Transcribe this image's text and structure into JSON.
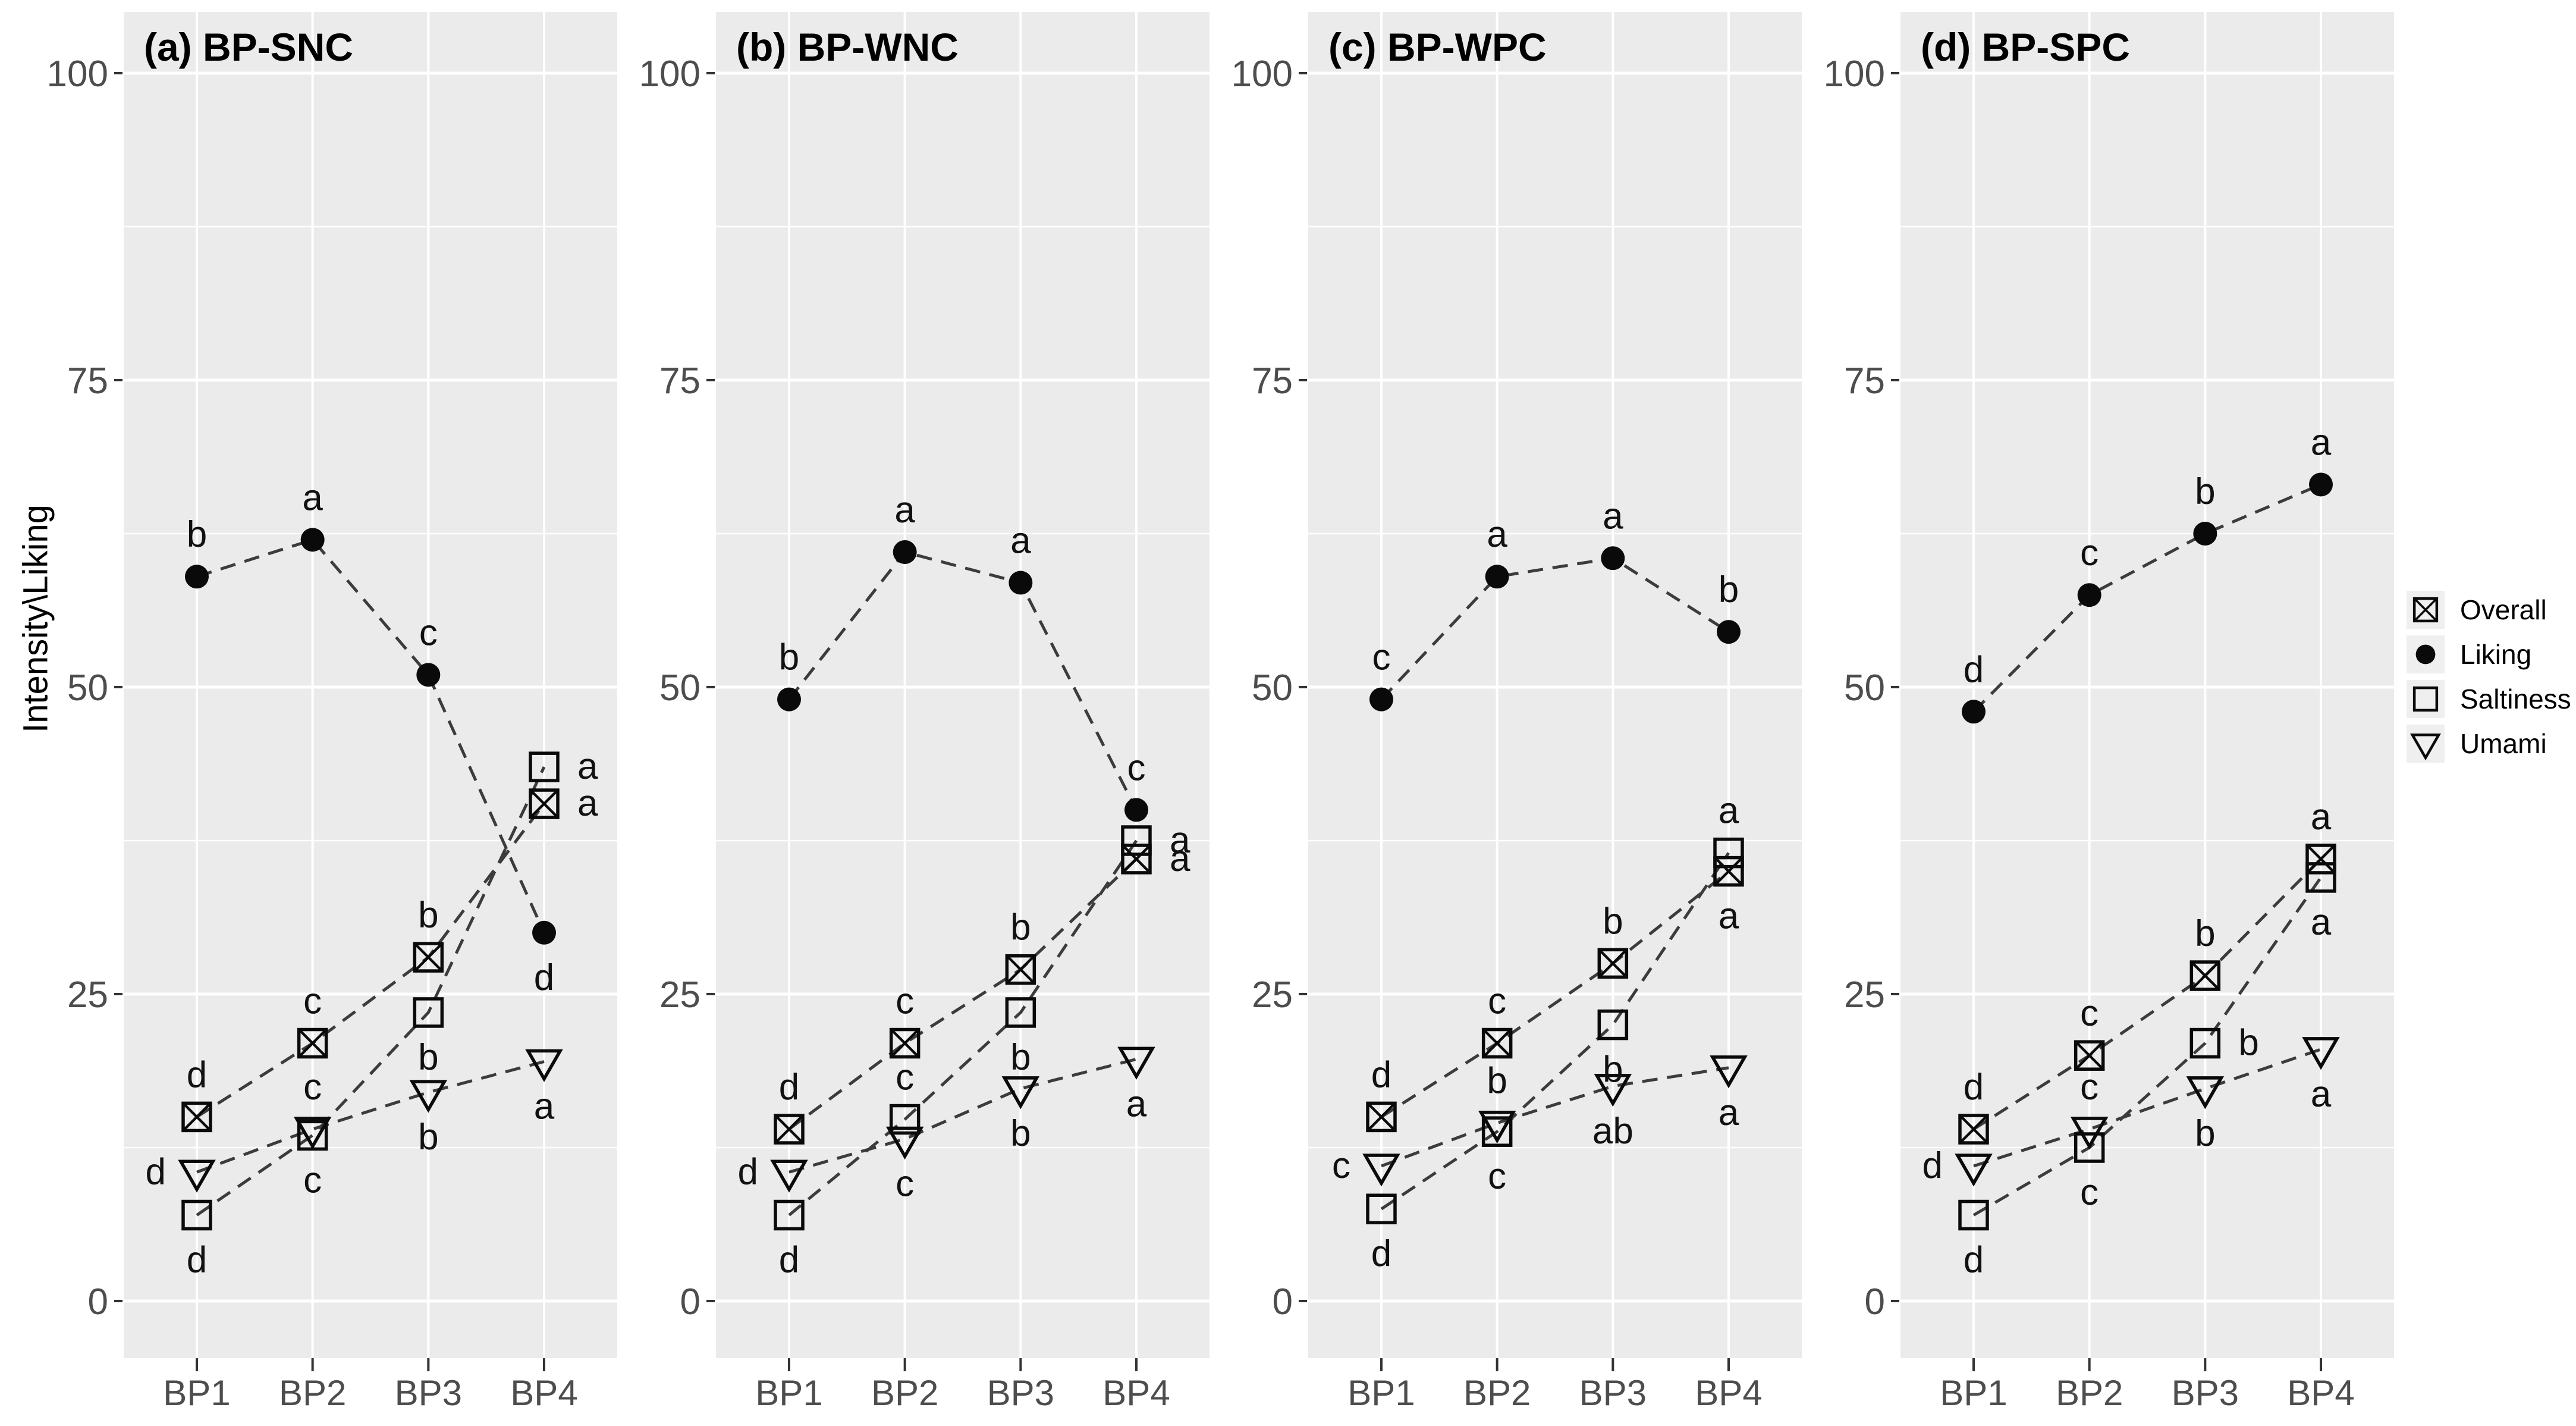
{
  "figure": {
    "ylabel": "Intensity\\Liking",
    "background": "#FFFFFF"
  },
  "colors": {
    "panel_bg": "#EBEBEB",
    "grid_major": "#FFFFFF",
    "grid_minor": "#FFFFFF",
    "marker": "#0A0A0A",
    "dash_line": "#3C3C3C",
    "axis_text": "#4D4D4D",
    "tick_mark": "#333333",
    "title_text": "#000000",
    "sig_label_text": "#111111",
    "legend_key_bg": "#EFEFEF"
  },
  "legend": {
    "position": "right",
    "entries": [
      {
        "label": "Overall",
        "marker": "crossed-square"
      },
      {
        "label": "Liking",
        "marker": "filled-circle"
      },
      {
        "label": "Saltiness",
        "marker": "open-square"
      },
      {
        "label": "Umami",
        "marker": "open-triangle-down"
      }
    ]
  },
  "chart_data": [
    {
      "type": "line",
      "title": "(a) BP-SNC",
      "categories": [
        "BP1",
        "BP2",
        "BP3",
        "BP4"
      ],
      "xlabel": "",
      "ylabel": "Intensity\\Liking",
      "ylim": [
        0,
        100
      ],
      "yticks": [
        0,
        25,
        50,
        75,
        100
      ],
      "grid": "major+minor",
      "line_style": "dashed",
      "series": [
        {
          "name": "Overall",
          "marker": "crossed-square",
          "values": [
            15,
            21,
            28,
            40.5
          ],
          "sig_labels": [
            "d",
            "c",
            "b",
            "a"
          ],
          "label_pos": [
            "above",
            "above",
            "above",
            "right"
          ]
        },
        {
          "name": "Liking",
          "marker": "filled-circle",
          "values": [
            59,
            62,
            51,
            30
          ],
          "sig_labels": [
            "b",
            "a",
            "c",
            "d"
          ],
          "label_pos": [
            "above",
            "above",
            "above",
            "below"
          ]
        },
        {
          "name": "Saltiness",
          "marker": "open-square",
          "values": [
            7,
            13.5,
            23.5,
            43.5
          ],
          "sig_labels": [
            "d",
            "c",
            "b",
            "a"
          ],
          "label_pos": [
            "below",
            "below",
            "below",
            "right"
          ]
        },
        {
          "name": "Umami",
          "marker": "open-triangle-down",
          "values": [
            10.5,
            14,
            17,
            19.5
          ],
          "sig_labels": [
            "d",
            "c",
            "b",
            "a"
          ],
          "label_pos": [
            "left",
            "above",
            "below",
            "below"
          ]
        }
      ]
    },
    {
      "type": "line",
      "title": "(b) BP-WNC",
      "categories": [
        "BP1",
        "BP2",
        "BP3",
        "BP4"
      ],
      "xlabel": "",
      "ylabel": "Intensity\\Liking",
      "ylim": [
        0,
        100
      ],
      "yticks": [
        0,
        25,
        50,
        75,
        100
      ],
      "grid": "major+minor",
      "line_style": "dashed",
      "series": [
        {
          "name": "Overall",
          "marker": "crossed-square",
          "values": [
            14,
            21,
            27,
            36
          ],
          "sig_labels": [
            "d",
            "c",
            "b",
            "a"
          ],
          "label_pos": [
            "above",
            "above",
            "above",
            "right"
          ]
        },
        {
          "name": "Liking",
          "marker": "filled-circle",
          "values": [
            49,
            61,
            58.5,
            40
          ],
          "sig_labels": [
            "b",
            "a",
            "a",
            "c"
          ],
          "label_pos": [
            "above",
            "above",
            "above",
            "above"
          ]
        },
        {
          "name": "Saltiness",
          "marker": "open-square",
          "values": [
            7,
            14.8,
            23.5,
            37.5
          ],
          "sig_labels": [
            "d",
            "c",
            "b",
            "a"
          ],
          "label_pos": [
            "below",
            "above",
            "below",
            "right"
          ]
        },
        {
          "name": "Umami",
          "marker": "open-triangle-down",
          "values": [
            10.5,
            13.2,
            17.3,
            19.7
          ],
          "sig_labels": [
            "d",
            "c",
            "b",
            "a"
          ],
          "label_pos": [
            "left",
            "below",
            "below",
            "below"
          ]
        }
      ]
    },
    {
      "type": "line",
      "title": "(c) BP-WPC",
      "categories": [
        "BP1",
        "BP2",
        "BP3",
        "BP4"
      ],
      "xlabel": "",
      "ylabel": "Intensity\\Liking",
      "ylim": [
        0,
        100
      ],
      "yticks": [
        0,
        25,
        50,
        75,
        100
      ],
      "grid": "major+minor",
      "line_style": "dashed",
      "series": [
        {
          "name": "Overall",
          "marker": "crossed-square",
          "values": [
            15,
            21,
            27.5,
            35
          ],
          "sig_labels": [
            "d",
            "c",
            "b",
            "a"
          ],
          "label_pos": [
            "above",
            "above",
            "above",
            "below"
          ]
        },
        {
          "name": "Liking",
          "marker": "filled-circle",
          "values": [
            49,
            59,
            60.5,
            54.5
          ],
          "sig_labels": [
            "c",
            "a",
            "a",
            "b"
          ],
          "label_pos": [
            "above",
            "above",
            "above",
            "above"
          ]
        },
        {
          "name": "Saltiness",
          "marker": "open-square",
          "values": [
            7.5,
            13.8,
            22.5,
            36.5
          ],
          "sig_labels": [
            "d",
            "c",
            "b",
            "a"
          ],
          "label_pos": [
            "below",
            "below",
            "below",
            "above"
          ]
        },
        {
          "name": "Umami",
          "marker": "open-triangle-down",
          "values": [
            11,
            14.5,
            17.5,
            19
          ],
          "sig_labels": [
            "c",
            "b",
            "ab",
            "a"
          ],
          "label_pos": [
            "left",
            "above",
            "below",
            "below"
          ]
        }
      ]
    },
    {
      "type": "line",
      "title": "(d) BP-SPC",
      "categories": [
        "BP1",
        "BP2",
        "BP3",
        "BP4"
      ],
      "xlabel": "",
      "ylabel": "Intensity\\Liking",
      "ylim": [
        0,
        100
      ],
      "yticks": [
        0,
        25,
        50,
        75,
        100
      ],
      "grid": "major+minor",
      "line_style": "dashed",
      "series": [
        {
          "name": "Overall",
          "marker": "crossed-square",
          "values": [
            14,
            20,
            26.5,
            36
          ],
          "sig_labels": [
            "d",
            "c",
            "b",
            "a"
          ],
          "label_pos": [
            "above",
            "above",
            "above",
            "above"
          ]
        },
        {
          "name": "Liking",
          "marker": "filled-circle",
          "values": [
            48,
            57.5,
            62.5,
            66.5
          ],
          "sig_labels": [
            "d",
            "c",
            "b",
            "a"
          ],
          "label_pos": [
            "above",
            "above",
            "above",
            "above"
          ]
        },
        {
          "name": "Saltiness",
          "marker": "open-square",
          "values": [
            7,
            12.5,
            21,
            34.5
          ],
          "sig_labels": [
            "d",
            "c",
            "b",
            "a"
          ],
          "label_pos": [
            "below",
            "below",
            "right",
            "below"
          ]
        },
        {
          "name": "Umami",
          "marker": "open-triangle-down",
          "values": [
            11,
            14,
            17.3,
            20.5
          ],
          "sig_labels": [
            "d",
            "c",
            "b",
            "a"
          ],
          "label_pos": [
            "left",
            "above",
            "below",
            "below"
          ]
        }
      ]
    }
  ]
}
